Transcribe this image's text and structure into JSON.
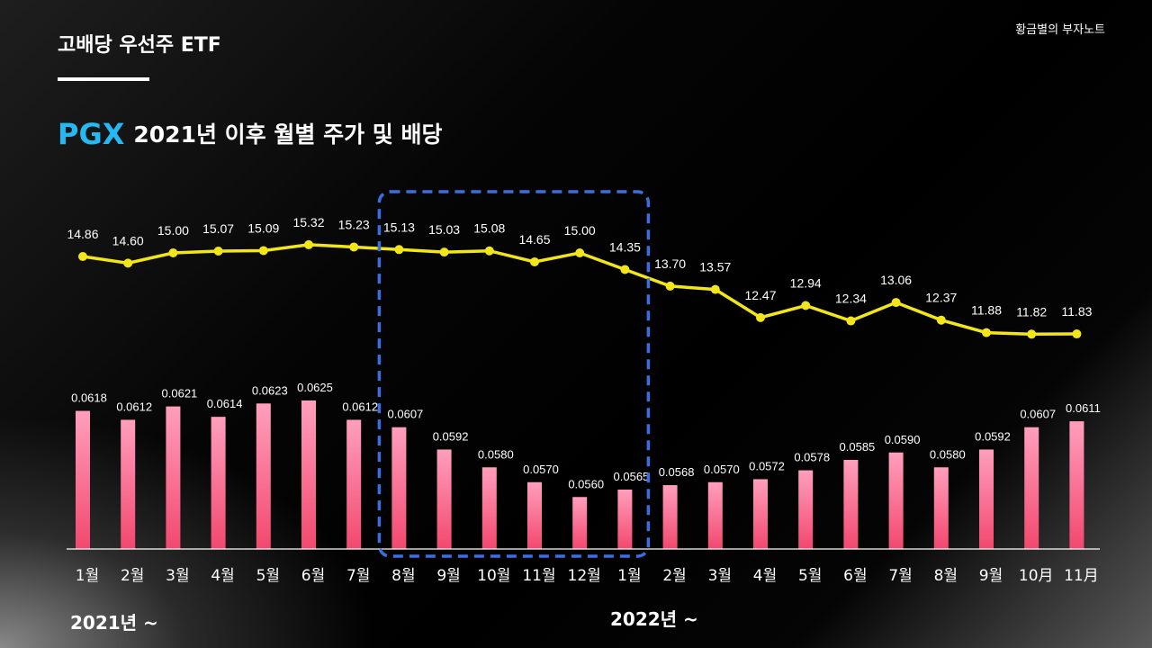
{
  "header": {
    "title": "고배당 우선주 ETF",
    "watermark": "황금별의 부자노트",
    "ticker": "PGX",
    "subtitle": "2021년 이후 월별 주가 및 배당"
  },
  "year_labels": [
    "2021년 ~",
    "2022년 ~"
  ],
  "colors": {
    "price_line": "#f2e61a",
    "bar_top": "#ff9fbd",
    "bar_bottom": "#f2486e",
    "highlight_box": "#3b6fe0",
    "ticker": "#25b8f2"
  },
  "chart_data": {
    "type": "bar+line",
    "categories": [
      "1월",
      "2월",
      "3월",
      "4월",
      "5월",
      "6월",
      "7월",
      "8월",
      "9월",
      "10월",
      "11월",
      "12월",
      "1월",
      "2월",
      "3월",
      "4월",
      "5월",
      "6월",
      "7월",
      "8월",
      "9월",
      "10月",
      "11月"
    ],
    "price_labels": [
      "14.86",
      "14.60",
      "15.00",
      "15.07",
      "15.09",
      "15.32",
      "15.23",
      "15.13",
      "15.03",
      "15.08",
      "14.65",
      "15.00",
      "14.35",
      "13.70",
      "13.57",
      "12.47",
      "12.94",
      "12.34",
      "13.06",
      "12.37",
      "11.88",
      "11.82",
      "11.83"
    ],
    "dividend_labels": [
      "0.0618",
      "0.0612",
      "0.0621",
      "0.0614",
      "0.0623",
      "0.0625",
      "0.0612",
      "0.0607",
      "0.0592",
      "0.0580",
      "0.0570",
      "0.0560",
      "0.0565",
      "0.0568",
      "0.0570",
      "0.0572",
      "0.0578",
      "0.0585",
      "0.0590",
      "0.0580",
      "0.0592",
      "0.0607",
      "0.0611"
    ],
    "series": [
      {
        "type": "line",
        "values": [
          14.86,
          14.6,
          15.0,
          15.07,
          15.09,
          15.32,
          15.23,
          15.13,
          15.03,
          15.08,
          14.65,
          15.0,
          14.35,
          13.7,
          13.57,
          12.47,
          12.94,
          12.34,
          13.06,
          12.37,
          11.88,
          11.82,
          11.83
        ]
      },
      {
        "type": "bar",
        "values": [
          0.0618,
          0.0612,
          0.0621,
          0.0614,
          0.0623,
          0.0625,
          0.0612,
          0.0607,
          0.0592,
          0.058,
          0.057,
          0.056,
          0.0565,
          0.0568,
          0.057,
          0.0572,
          0.0578,
          0.0585,
          0.059,
          0.058,
          0.0592,
          0.0607,
          0.0611
        ]
      }
    ],
    "highlight_range": [
      7,
      12
    ],
    "grid": false,
    "legend": "none"
  }
}
